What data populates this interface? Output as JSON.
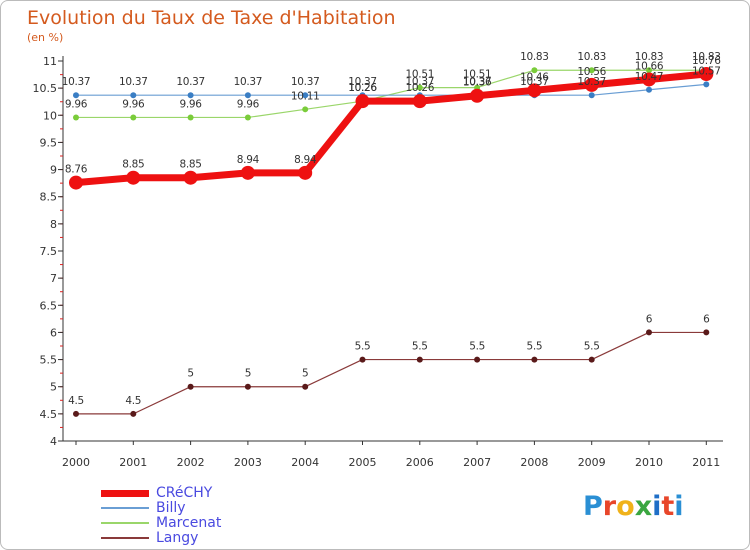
{
  "title": "Evolution du Taux de Taxe d'Habitation",
  "subtitle": "(en %)",
  "logo": {
    "text": "Proxiti",
    "colors": [
      "#2a8fd4",
      "#e8462a",
      "#f0b21a",
      "#3aa640",
      "#1f6fc7",
      "#e8462a",
      "#2a8fd4"
    ]
  },
  "colors": {
    "title": "#d45a1e",
    "legend_text": "#4a4ae0",
    "axis": "#333333"
  },
  "chart_data": {
    "type": "line",
    "title": "Evolution du Taux de Taxe d'Habitation",
    "ylabel": "(en %)",
    "xlabel": "",
    "x": [
      "2000",
      "2001",
      "2002",
      "2003",
      "2004",
      "2005",
      "2006",
      "2007",
      "2008",
      "2009",
      "2010",
      "2011"
    ],
    "ylim": [
      4,
      11
    ],
    "yticks": [
      "4",
      "4.5",
      "5",
      "5.5",
      "6",
      "6.5",
      "7",
      "7.5",
      "8",
      "8.5",
      "9",
      "9.5",
      "10",
      "10.5",
      "11"
    ],
    "series": [
      {
        "name": "CRéCHY",
        "color": "#ee1111",
        "width": 7,
        "marker": 7,
        "values": [
          8.76,
          8.85,
          8.85,
          8.94,
          8.94,
          10.26,
          10.26,
          10.36,
          10.46,
          10.56,
          10.66,
          10.76
        ],
        "labels": [
          "8.76",
          "8.85",
          "8.85",
          "8.94",
          "8.94",
          "10.26",
          "10.26",
          "10.36",
          "10.46",
          "10.56",
          "10.66",
          "10.76"
        ]
      },
      {
        "name": "Billy",
        "color": "#6a9ed4",
        "width": 1.2,
        "marker": 3,
        "values": [
          10.37,
          10.37,
          10.37,
          10.37,
          10.37,
          10.37,
          10.37,
          10.37,
          10.37,
          10.37,
          10.47,
          10.57
        ],
        "labels": [
          "10.37",
          "10.37",
          "10.37",
          "10.37",
          "10.37",
          "10.37",
          "10.37",
          "10.37",
          "10.37",
          "10.37",
          "10.47",
          "10.57"
        ]
      },
      {
        "name": "Marcenat",
        "color": "#9ad66a",
        "width": 1.2,
        "marker": 3,
        "values": [
          9.96,
          9.96,
          9.96,
          9.96,
          10.11,
          10.26,
          10.51,
          10.51,
          10.83,
          10.83,
          10.83,
          10.83
        ],
        "labels": [
          "9.96",
          "9.96",
          "9.96",
          "9.96",
          "10.11",
          "10.26",
          "10.51",
          "10.51",
          "10.83",
          "10.83",
          "10.83",
          "10.83"
        ]
      },
      {
        "name": "Langy",
        "color": "#8a3a3a",
        "width": 1.2,
        "marker": 3,
        "values": [
          4.5,
          4.5,
          5,
          5,
          5,
          5.5,
          5.5,
          5.5,
          5.5,
          5.5,
          6,
          6
        ],
        "labels": [
          "4.5",
          "4.5",
          "5",
          "5",
          "5",
          "5.5",
          "5.5",
          "5.5",
          "5.5",
          "5.5",
          "6",
          "6"
        ]
      }
    ],
    "legend_position": "bottom-left"
  }
}
